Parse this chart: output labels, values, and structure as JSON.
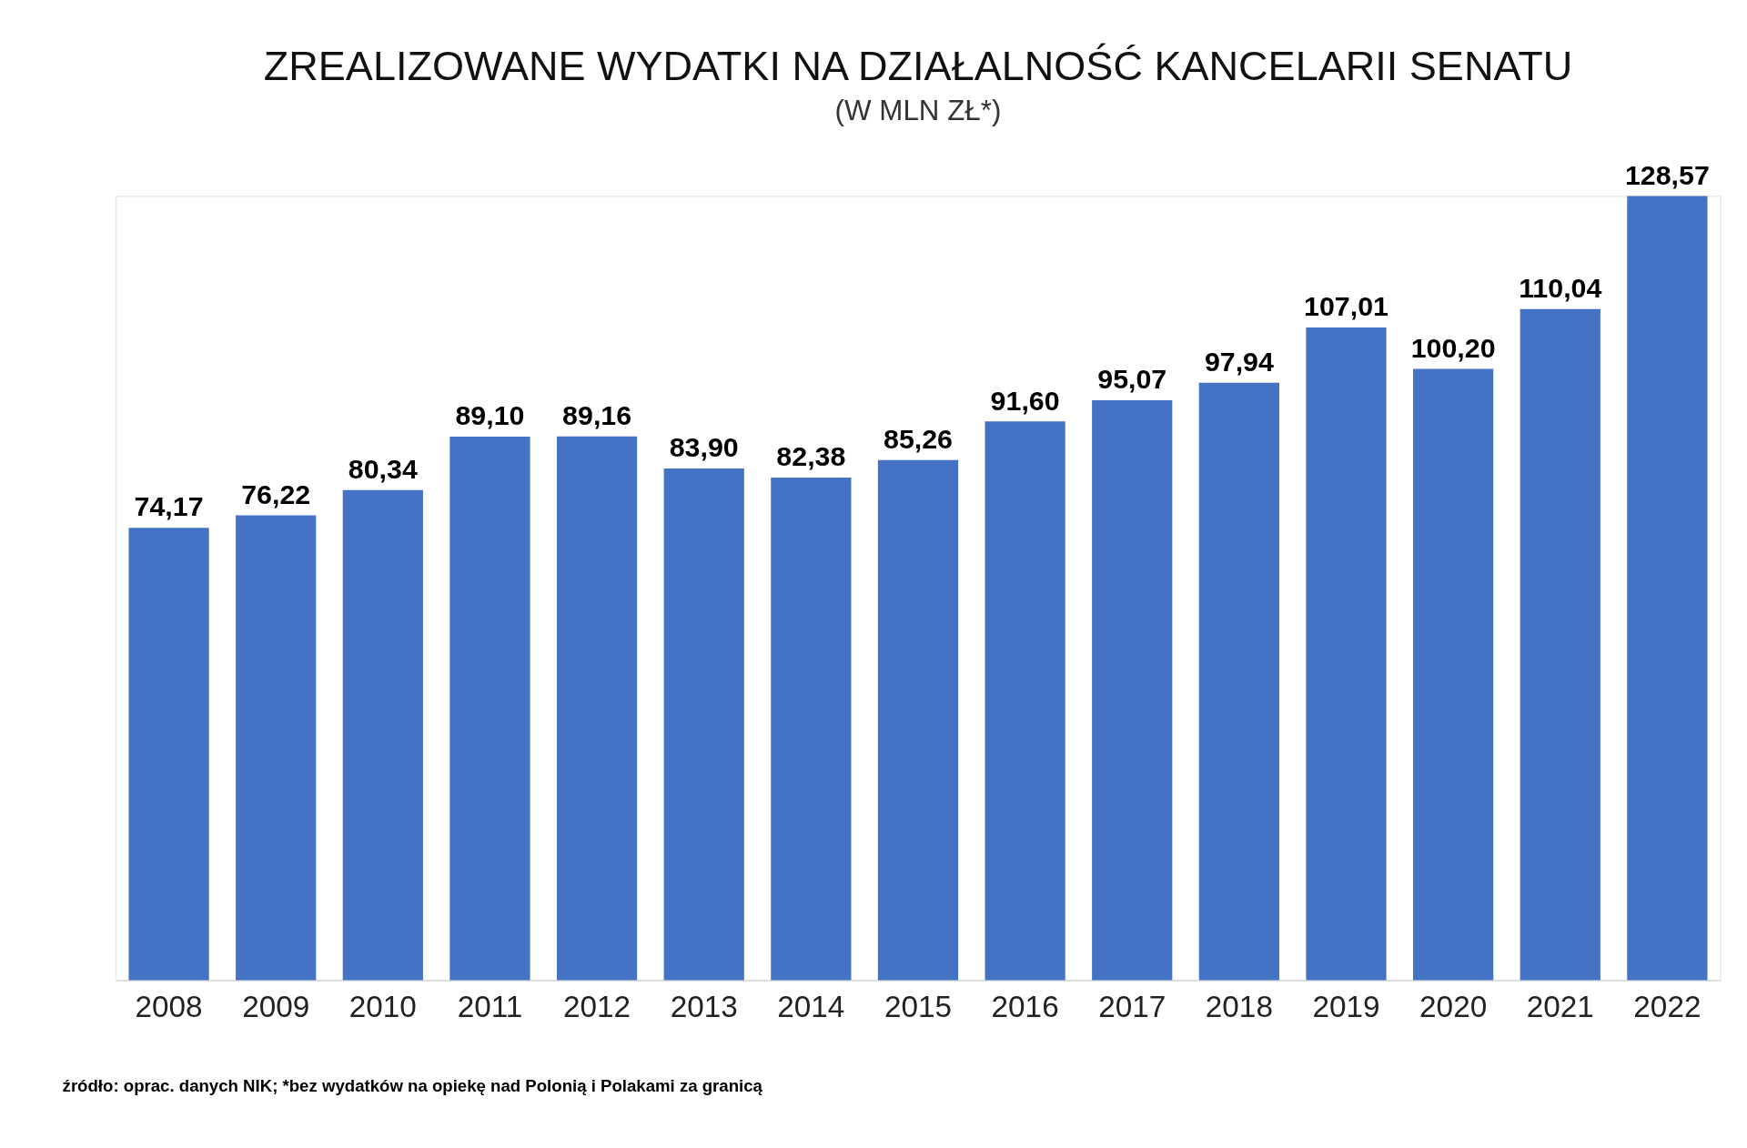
{
  "chart_data": {
    "type": "bar",
    "title": "ZREALIZOWANE WYDATKI NA DZIAŁALNOŚĆ KANCELARII SENATU",
    "subtitle": "(W MLN ZŁ*)",
    "categories": [
      "2008",
      "2009",
      "2010",
      "2011",
      "2012",
      "2013",
      "2014",
      "2015",
      "2016",
      "2017",
      "2018",
      "2019",
      "2020",
      "2021",
      "2022"
    ],
    "values": [
      74.17,
      76.22,
      80.34,
      89.1,
      89.16,
      83.9,
      82.38,
      85.26,
      91.6,
      95.07,
      97.94,
      107.01,
      100.2,
      110.04,
      128.57
    ],
    "value_labels": [
      "74,17",
      "76,22",
      "80,34",
      "89,10",
      "89,16",
      "83,90",
      "82,38",
      "85,26",
      "91,60",
      "95,07",
      "97,94",
      "107,01",
      "100,20",
      "110,04",
      "128,57"
    ],
    "color": "#4472c4",
    "grid": false,
    "annotations": [
      "źródło: oprac. danych NIK; *bez wydatków na opiekę nad Polonią i Polakami za granicą"
    ]
  }
}
